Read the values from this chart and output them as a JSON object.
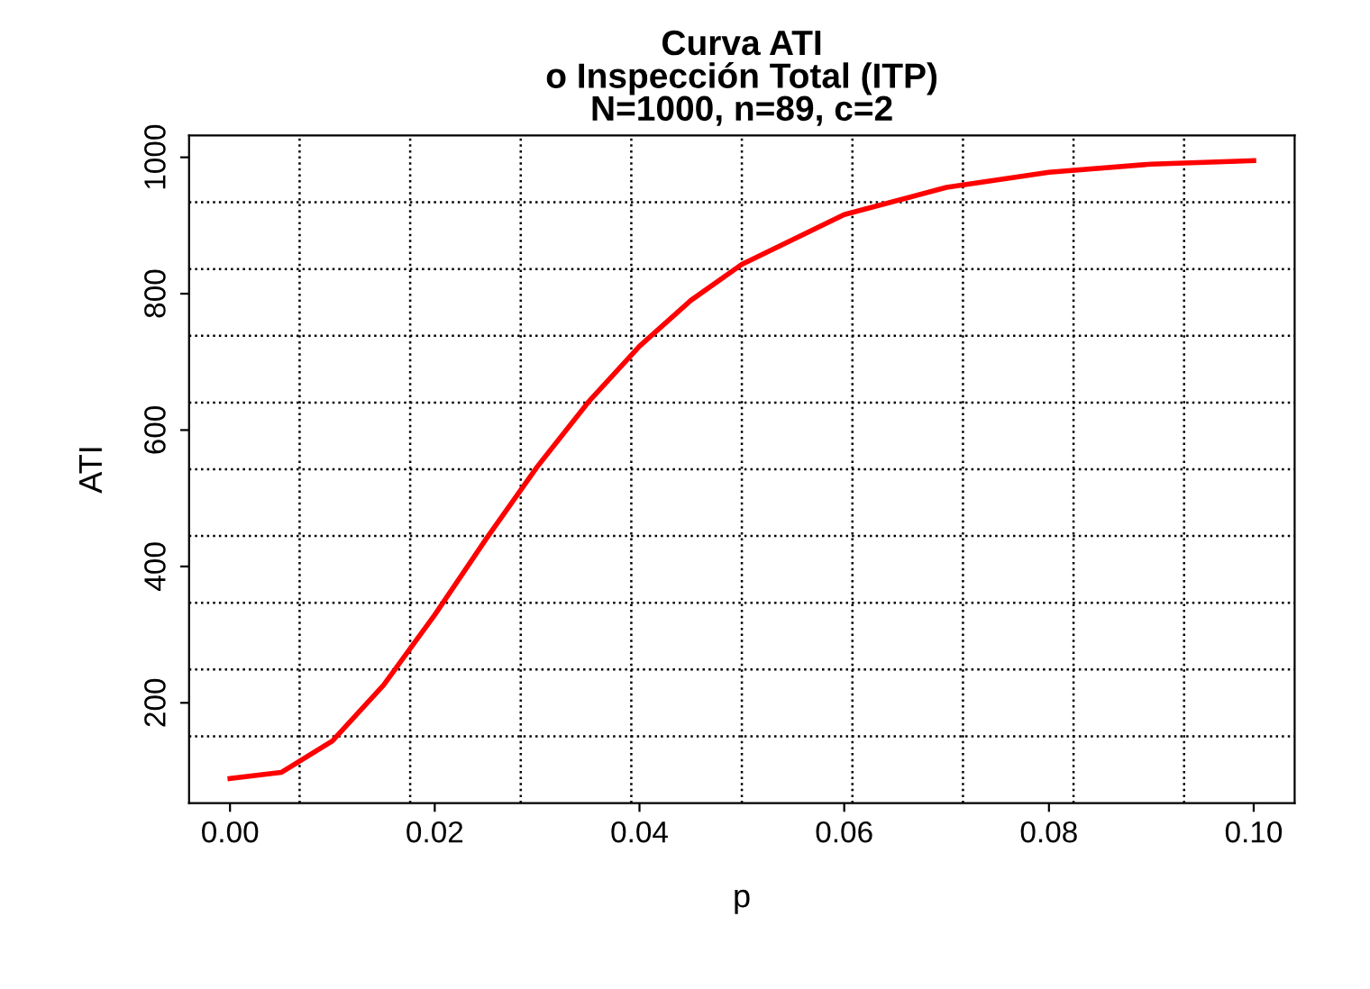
{
  "chart_data": {
    "type": "line",
    "title": "Curva ATI\no Inspección Total (ITP)\nN=1000, n=89, c=2",
    "xlabel": "p",
    "ylabel": "ATI",
    "x": [
      0,
      0.005,
      0.01,
      0.015,
      0.02,
      0.025,
      0.03,
      0.035,
      0.04,
      0.045,
      0.05,
      0.06,
      0.07,
      0.08,
      0.09,
      0.1
    ],
    "series": [
      {
        "color": "#ff0000",
        "values": [
          89,
          98,
          144,
          226,
          329,
          440,
          546,
          641,
          723,
          790,
          843,
          916,
          956,
          978,
          990,
          995
        ]
      }
    ],
    "xlim": [
      -0.004,
      0.104
    ],
    "ylim": [
      53,
      1032
    ],
    "xticks": [
      {
        "value": 0,
        "label": "0.00"
      },
      {
        "value": 0.02,
        "label": "0.02"
      },
      {
        "value": 0.04,
        "label": "0.04"
      },
      {
        "value": 0.06,
        "label": "0.06"
      },
      {
        "value": 0.08,
        "label": "0.08"
      },
      {
        "value": 0.1,
        "label": "0.10"
      }
    ],
    "yticks": [
      200,
      400,
      600,
      800,
      1000
    ],
    "grid": true,
    "line_style": "solid",
    "marker": "none"
  }
}
